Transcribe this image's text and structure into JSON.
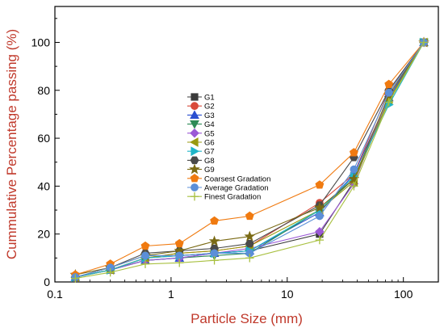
{
  "chart_data": {
    "type": "line",
    "title": "",
    "xlabel": "Particle Size (mm)",
    "ylabel": "Cummulative Percentage passing (%)",
    "x_scale": "log",
    "xlim": [
      0.1,
      200
    ],
    "ylim": [
      0,
      115
    ],
    "x_ticks": [
      0.1,
      1,
      10,
      100
    ],
    "x_tick_labels": [
      "0.1",
      "1",
      "10",
      "100"
    ],
    "y_ticks": [
      0,
      20,
      40,
      60,
      80,
      100
    ],
    "y_tick_labels": [
      "0",
      "20",
      "40",
      "60",
      "80",
      "100"
    ],
    "grid": false,
    "legend_position": "center",
    "x": [
      0.15,
      0.3,
      0.6,
      1.18,
      2.36,
      4.75,
      19,
      37.5,
      75,
      150
    ],
    "series": [
      {
        "name": "G1",
        "color": "#3a3a3a",
        "marker": "square",
        "values": [
          2,
          5,
          10,
          11,
          12,
          13,
          20,
          42,
          76,
          100
        ]
      },
      {
        "name": "G2",
        "color": "#d94a3a",
        "marker": "circle",
        "values": [
          2,
          5,
          10,
          12,
          13,
          15,
          33,
          45,
          80,
          100
        ]
      },
      {
        "name": "G3",
        "color": "#2a4fd0",
        "marker": "triangle-up",
        "values": [
          2,
          5,
          9,
          10,
          12,
          13,
          29,
          45,
          77,
          100
        ]
      },
      {
        "name": "G4",
        "color": "#2e8b57",
        "marker": "triangle-down",
        "values": [
          2,
          5,
          9,
          10,
          11,
          12,
          30,
          43,
          76,
          100
        ]
      },
      {
        "name": "G5",
        "color": "#9b59d6",
        "marker": "diamond",
        "values": [
          2,
          5,
          9,
          10,
          12,
          14,
          21,
          41,
          78,
          100
        ]
      },
      {
        "name": "G6",
        "color": "#9a9a10",
        "marker": "triangle-left",
        "values": [
          2,
          5,
          10,
          12,
          13,
          15,
          30,
          42,
          76,
          100
        ]
      },
      {
        "name": "G7",
        "color": "#1fb5c8",
        "marker": "triangle-right",
        "values": [
          2,
          5,
          10,
          11,
          12,
          13,
          30,
          44,
          74,
          100
        ]
      },
      {
        "name": "G8",
        "color": "#4a4a4a",
        "marker": "hexagon",
        "values": [
          2,
          6,
          12,
          13,
          14,
          16,
          32,
          52,
          80,
          100
        ]
      },
      {
        "name": "G9",
        "color": "#7a6a14",
        "marker": "star",
        "values": [
          3,
          6,
          11,
          13,
          17,
          19,
          31,
          43,
          78,
          100
        ]
      },
      {
        "name": "Coarsest Gradation",
        "color": "#f07a10",
        "marker": "pentagon",
        "values": [
          3,
          7.5,
          15,
          16,
          25.5,
          27.5,
          40.5,
          54,
          82.5,
          100
        ]
      },
      {
        "name": "Average Gradation",
        "color": "#5b8fd8",
        "marker": "circle",
        "values": [
          2,
          6,
          11,
          11,
          12,
          12,
          27.5,
          47,
          79,
          100
        ]
      },
      {
        "name": "Finest Gradation",
        "color": "#a8c040",
        "marker": "plus",
        "values": [
          1.5,
          4,
          7.5,
          8,
          9,
          10,
          17.5,
          40,
          75,
          100
        ]
      }
    ]
  }
}
